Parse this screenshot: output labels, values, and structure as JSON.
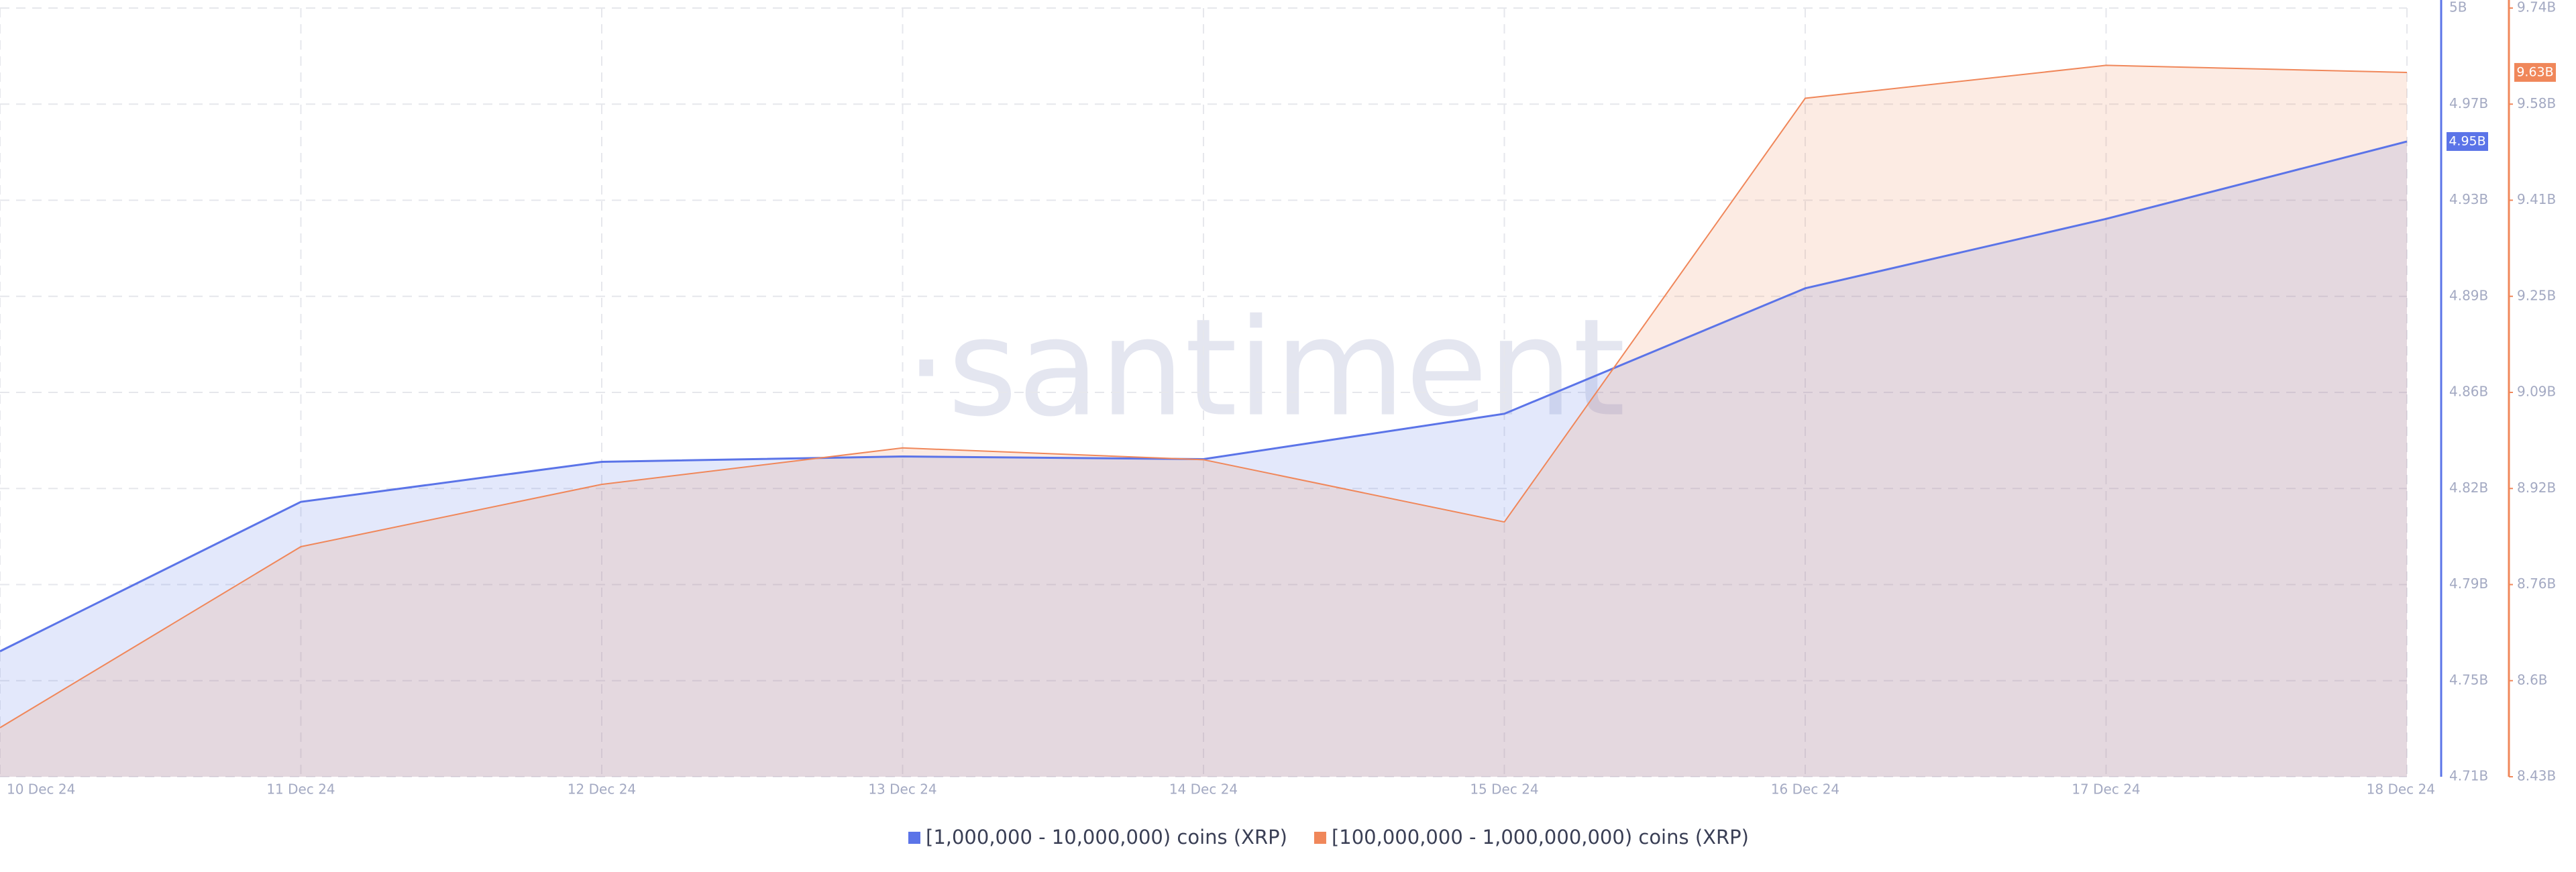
{
  "chart_data": {
    "type": "line",
    "watermark": "·santiment",
    "categories": [
      "10 Dec 24",
      "11 Dec 24",
      "12 Dec 24",
      "13 Dec 24",
      "14 Dec 24",
      "15 Dec 24",
      "16 Dec 24",
      "17 Dec 24",
      "18 Dec 24"
    ],
    "series": [
      {
        "name": "[1,000,000 - 10,000,000) coins (XRP)",
        "color": "#5b74e8",
        "axis": "y",
        "values": [
          4.761,
          4.817,
          4.832,
          4.834,
          4.833,
          4.85,
          4.897,
          4.923,
          4.952
        ],
        "value_labels": [
          null,
          null,
          null,
          null,
          null,
          null,
          null,
          null,
          "4.95B"
        ]
      },
      {
        "name": "[100,000,000 - 1,000,000,000) coins (XRP)",
        "color": "#f0875a",
        "axis": "y2",
        "values": [
          8.517,
          8.825,
          8.931,
          8.993,
          8.973,
          8.867,
          9.588,
          9.644,
          9.632
        ],
        "value_labels": [
          null,
          null,
          null,
          null,
          null,
          null,
          null,
          null,
          "9.63B"
        ]
      }
    ],
    "ylim": [
      4.714,
      5.002
    ],
    "yticks": [
      {
        "value": 4.714,
        "label": "4.71B"
      },
      {
        "value": 4.75,
        "label": "4.75B"
      },
      {
        "value": 4.786,
        "label": "4.79B"
      },
      {
        "value": 4.822,
        "label": "4.82B"
      },
      {
        "value": 4.858,
        "label": "4.86B"
      },
      {
        "value": 4.894,
        "label": "4.89B"
      },
      {
        "value": 4.93,
        "label": "4.93B"
      },
      {
        "value": 4.966,
        "label": "4.97B"
      },
      {
        "value": 5.002,
        "label": "5B"
      }
    ],
    "y2lim": [
      8.4335,
      9.7415
    ],
    "y2ticks": [
      {
        "value": 8.4335,
        "label": "8.43B"
      },
      {
        "value": 8.597,
        "label": "8.6B"
      },
      {
        "value": 8.7605,
        "label": "8.76B"
      },
      {
        "value": 8.924,
        "label": "8.92B"
      },
      {
        "value": 9.0875,
        "label": "9.09B"
      },
      {
        "value": 9.251,
        "label": "9.25B"
      },
      {
        "value": 9.4145,
        "label": "9.41B"
      },
      {
        "value": 9.578,
        "label": "9.58B"
      },
      {
        "value": 9.7415,
        "label": "9.74B"
      }
    ],
    "grid": true
  }
}
